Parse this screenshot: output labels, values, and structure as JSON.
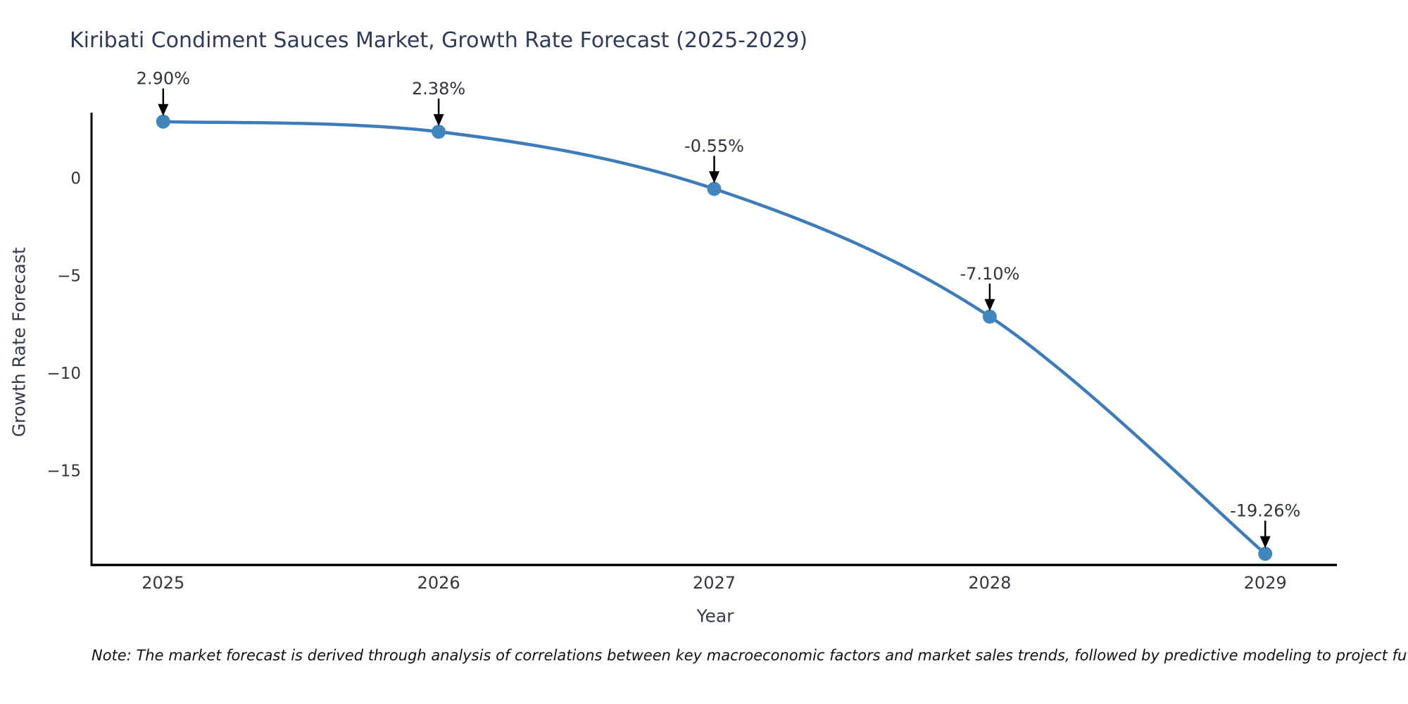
{
  "chart_data": {
    "type": "line",
    "title": "Kiribati Condiment Sauces Market, Growth Rate Forecast (2025-2029)",
    "xlabel": "Year",
    "ylabel": "Growth Rate Forecast",
    "x": [
      2025,
      2026,
      2027,
      2028,
      2029
    ],
    "values": [
      2.9,
      2.38,
      -0.55,
      -7.1,
      -19.26
    ],
    "point_labels": [
      "2.90%",
      "2.38%",
      "-0.55%",
      "-7.10%",
      "-19.26%"
    ],
    "x_tick_labels": [
      "2025",
      "2026",
      "2027",
      "2028",
      "2029"
    ],
    "y_ticks": [
      {
        "value": 0,
        "label": "0"
      },
      {
        "value": -5,
        "label": "−5"
      },
      {
        "value": -10,
        "label": "−10"
      },
      {
        "value": -15,
        "label": "−15"
      }
    ],
    "x_range": [
      2024.74,
      2029.26
    ],
    "y_range": [
      -19.78,
      3.36
    ],
    "grid": false,
    "legend_position": "none",
    "line_color": "#3d7cb8",
    "marker_color": "#4286bd",
    "arrow_color": "#000000",
    "spine_color": "#000000",
    "tick_label_color": "#33363f",
    "annotation_text_color": "#2e3440",
    "note": "Note: The market forecast is derived through analysis of correlations between key macroeconomic factors and market sales trends, followed by predictive modeling to project future sales"
  }
}
